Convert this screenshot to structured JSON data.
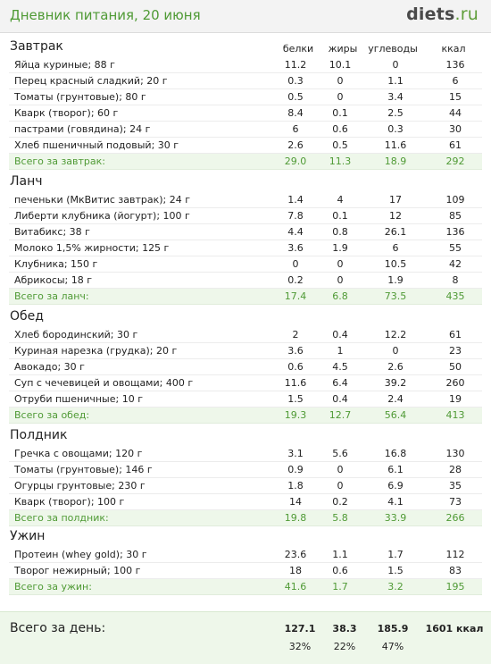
{
  "header": {
    "title": "Дневник питания, 20 июня",
    "logo_main": "diets",
    "logo_tld": ".ru"
  },
  "columns": {
    "protein": "белки",
    "fat": "жиры",
    "carbs": "углеводы",
    "kcal": "ккал"
  },
  "sections": [
    {
      "name": "Завтрак",
      "rows": [
        [
          "Яйца куриные; 88 г",
          "11.2",
          "10.1",
          "0",
          "136"
        ],
        [
          "Перец красный сладкий; 20 г",
          "0.3",
          "0",
          "1.1",
          "6"
        ],
        [
          "Томаты (грунтовые); 80 г",
          "0.5",
          "0",
          "3.4",
          "15"
        ],
        [
          "Кварк (творог); 60 г",
          "8.4",
          "0.1",
          "2.5",
          "44"
        ],
        [
          "пастрами (говядина); 24 г",
          "6",
          "0.6",
          "0.3",
          "30"
        ],
        [
          "Хлеб пшеничный подовый; 30 г",
          "2.6",
          "0.5",
          "11.6",
          "61"
        ]
      ],
      "total": [
        "Всего за завтрак:",
        "29.0",
        "11.3",
        "18.9",
        "292"
      ]
    },
    {
      "name": "Ланч",
      "rows": [
        [
          "печеньки (МкВитис завтрак); 24 г",
          "1.4",
          "4",
          "17",
          "109"
        ],
        [
          "Либерти клубника (йогурт); 100 г",
          "7.8",
          "0.1",
          "12",
          "85"
        ],
        [
          "Витабикс; 38 г",
          "4.4",
          "0.8",
          "26.1",
          "136"
        ],
        [
          "Молоко 1,5% жирности; 125 г",
          "3.6",
          "1.9",
          "6",
          "55"
        ],
        [
          "Клубника; 150 г",
          "0",
          "0",
          "10.5",
          "42"
        ],
        [
          "Абрикосы; 18 г",
          "0.2",
          "0",
          "1.9",
          "8"
        ]
      ],
      "total": [
        "Всего за ланч:",
        "17.4",
        "6.8",
        "73.5",
        "435"
      ]
    },
    {
      "name": "Обед",
      "rows": [
        [
          "Хлеб бородинский; 30 г",
          "2",
          "0.4",
          "12.2",
          "61"
        ],
        [
          "Куриная нарезка (грудка); 20 г",
          "3.6",
          "1",
          "0",
          "23"
        ],
        [
          "Авокадо; 30 г",
          "0.6",
          "4.5",
          "2.6",
          "50"
        ],
        [
          "Суп с чечевицей и овощами; 400 г",
          "11.6",
          "6.4",
          "39.2",
          "260"
        ],
        [
          "Отруби пшеничные; 10 г",
          "1.5",
          "0.4",
          "2.4",
          "19"
        ]
      ],
      "total": [
        "Всего за обед:",
        "19.3",
        "12.7",
        "56.4",
        "413"
      ]
    },
    {
      "name": "Полдник",
      "rows": [
        [
          "Гречка с овощами; 120 г",
          "3.1",
          "5.6",
          "16.8",
          "130"
        ],
        [
          "Томаты (грунтовые); 146 г",
          "0.9",
          "0",
          "6.1",
          "28"
        ],
        [
          "Огурцы грунтовые; 230 г",
          "1.8",
          "0",
          "6.9",
          "35"
        ],
        [
          "Кварк (творог); 100 г",
          "14",
          "0.2",
          "4.1",
          "73"
        ]
      ],
      "total": [
        "Всего за полдник:",
        "19.8",
        "5.8",
        "33.9",
        "266"
      ]
    },
    {
      "name": "Ужин",
      "rows": [
        [
          "Протеин (whey gold); 30 г",
          "23.6",
          "1.1",
          "1.7",
          "112"
        ],
        [
          "Творог нежирный; 100 г",
          "18",
          "0.6",
          "1.5",
          "83"
        ]
      ],
      "total": [
        "Всего за ужин:",
        "41.6",
        "1.7",
        "3.2",
        "195"
      ]
    }
  ],
  "day_total": {
    "label": "Всего за день:",
    "protein": "127.1",
    "fat": "38.3",
    "carbs": "185.9",
    "kcal": "1601 ккал",
    "protein_pct": "32%",
    "fat_pct": "22%",
    "carbs_pct": "47%"
  }
}
